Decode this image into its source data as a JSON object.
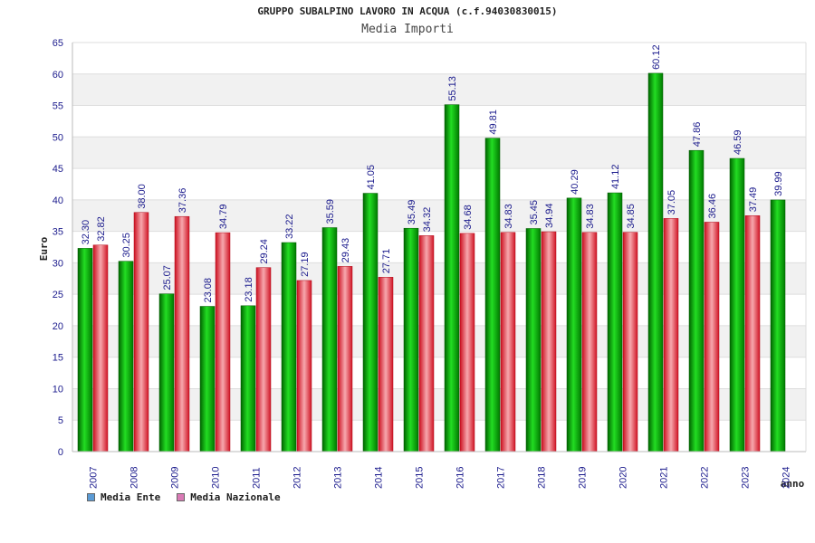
{
  "chart_data": {
    "type": "bar",
    "title": "GRUPPO SUBALPINO LAVORO IN ACQUA (c.f.94030830015)",
    "subtitle": "Media Importi",
    "xlabel": "anno",
    "ylabel": "Euro",
    "ylim": [
      0,
      65
    ],
    "yticks": [
      0,
      5,
      10,
      15,
      20,
      25,
      30,
      35,
      40,
      45,
      50,
      55,
      60,
      65
    ],
    "grid": true,
    "categories": [
      "2007",
      "2008",
      "2009",
      "2010",
      "2011",
      "2012",
      "2013",
      "2014",
      "2015",
      "2016",
      "2017",
      "2018",
      "2019",
      "2020",
      "2021",
      "2022",
      "2023",
      "2024"
    ],
    "series": [
      {
        "name": "Media Ente",
        "color": "#00aa00",
        "legend_color": "#5b9bd5",
        "values": [
          32.3,
          30.25,
          25.07,
          23.08,
          23.18,
          33.22,
          35.59,
          41.05,
          35.49,
          55.13,
          49.81,
          35.45,
          40.29,
          41.12,
          60.12,
          47.86,
          46.59,
          39.99
        ],
        "labels": [
          "32.30",
          "30.25",
          "25.07",
          "23.08",
          "23.18",
          "33.22",
          "35.59",
          "41.05",
          "35.49",
          "55.13",
          "49.81",
          "35.45",
          "40.29",
          "41.12",
          "60.12",
          "47.86",
          "46.59",
          "39.99"
        ]
      },
      {
        "name": "Media Nazionale",
        "color": "#e8222e",
        "legend_color": "#d97ab5",
        "values": [
          32.82,
          38.0,
          37.36,
          34.79,
          29.24,
          27.19,
          29.43,
          27.71,
          34.32,
          34.68,
          34.83,
          34.94,
          34.83,
          34.85,
          37.05,
          36.46,
          37.49,
          null
        ],
        "labels": [
          "32.82",
          "38.00",
          "37.36",
          "34.79",
          "29.24",
          "27.19",
          "29.43",
          "27.71",
          "34.32",
          "34.68",
          "34.83",
          "34.94",
          "34.83",
          "34.85",
          "37.05",
          "36.46",
          "37.49",
          null
        ]
      }
    ],
    "legend_position": "bottom-left"
  }
}
